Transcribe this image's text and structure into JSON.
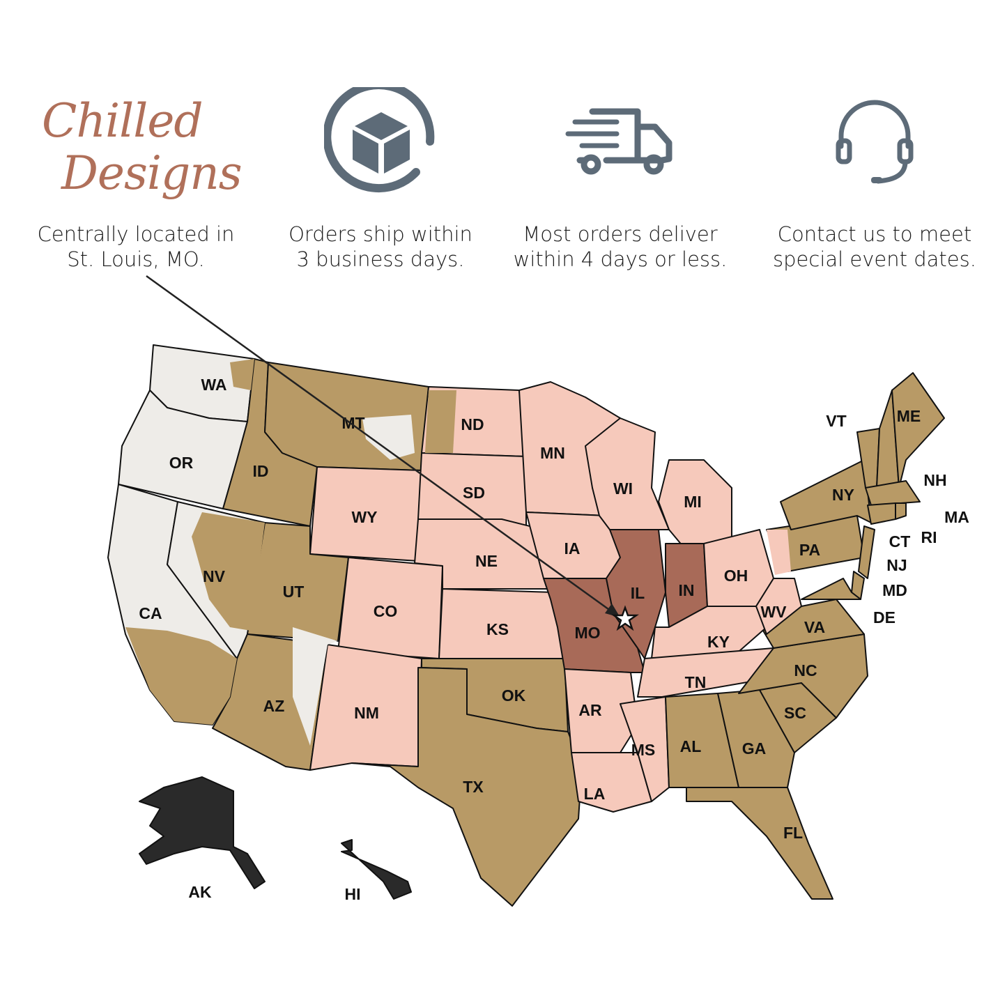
{
  "logo": {
    "line1": "Chilled",
    "line2": "Designs",
    "mark": "®"
  },
  "features": [
    {
      "icon": "location-logo",
      "line1": "Centrally located in",
      "line2": "St. Louis, MO."
    },
    {
      "icon": "package-icon",
      "line1": "Orders ship within",
      "line2": "3 business days."
    },
    {
      "icon": "truck-icon",
      "line1": "Most orders deliver",
      "line2": "within 4 days or less."
    },
    {
      "icon": "headset-icon",
      "line1": "Contact us to meet",
      "line2": "special event dates."
    }
  ],
  "colors": {
    "icon": "#5d6b78",
    "logo": "#b0705a",
    "zone_origin": "#a86a58",
    "zone_near": "#f6c9bb",
    "zone_mid": "#b89a66",
    "zone_far": "#eeece8",
    "zone_offshore": "#2a2a2a"
  },
  "map": {
    "origin": "St. Louis, MO",
    "states": [
      {
        "abbr": "WA",
        "zone": "far"
      },
      {
        "abbr": "OR",
        "zone": "far"
      },
      {
        "abbr": "CA",
        "zone": "far"
      },
      {
        "abbr": "NV",
        "zone": "far"
      },
      {
        "abbr": "ID",
        "zone": "mid"
      },
      {
        "abbr": "MT",
        "zone": "mid"
      },
      {
        "abbr": "WY",
        "zone": "near"
      },
      {
        "abbr": "UT",
        "zone": "mid"
      },
      {
        "abbr": "AZ",
        "zone": "mid"
      },
      {
        "abbr": "CO",
        "zone": "near"
      },
      {
        "abbr": "NM",
        "zone": "near"
      },
      {
        "abbr": "ND",
        "zone": "near"
      },
      {
        "abbr": "SD",
        "zone": "near"
      },
      {
        "abbr": "NE",
        "zone": "near"
      },
      {
        "abbr": "KS",
        "zone": "near"
      },
      {
        "abbr": "OK",
        "zone": "mid"
      },
      {
        "abbr": "TX",
        "zone": "mid"
      },
      {
        "abbr": "MN",
        "zone": "near"
      },
      {
        "abbr": "IA",
        "zone": "near"
      },
      {
        "abbr": "MO",
        "zone": "origin"
      },
      {
        "abbr": "AR",
        "zone": "near"
      },
      {
        "abbr": "LA",
        "zone": "near"
      },
      {
        "abbr": "WI",
        "zone": "near"
      },
      {
        "abbr": "IL",
        "zone": "origin"
      },
      {
        "abbr": "MI",
        "zone": "near"
      },
      {
        "abbr": "IN",
        "zone": "origin"
      },
      {
        "abbr": "OH",
        "zone": "near"
      },
      {
        "abbr": "KY",
        "zone": "near"
      },
      {
        "abbr": "TN",
        "zone": "near"
      },
      {
        "abbr": "MS",
        "zone": "near"
      },
      {
        "abbr": "AL",
        "zone": "mid"
      },
      {
        "abbr": "GA",
        "zone": "mid"
      },
      {
        "abbr": "FL",
        "zone": "mid"
      },
      {
        "abbr": "SC",
        "zone": "mid"
      },
      {
        "abbr": "NC",
        "zone": "mid"
      },
      {
        "abbr": "VA",
        "zone": "mid"
      },
      {
        "abbr": "WV",
        "zone": "near"
      },
      {
        "abbr": "PA",
        "zone": "mid"
      },
      {
        "abbr": "NY",
        "zone": "mid"
      },
      {
        "abbr": "VT",
        "zone": "mid"
      },
      {
        "abbr": "NH",
        "zone": "mid"
      },
      {
        "abbr": "ME",
        "zone": "mid"
      },
      {
        "abbr": "MA",
        "zone": "mid"
      },
      {
        "abbr": "RI",
        "zone": "mid"
      },
      {
        "abbr": "CT",
        "zone": "mid"
      },
      {
        "abbr": "NJ",
        "zone": "mid"
      },
      {
        "abbr": "DE",
        "zone": "mid"
      },
      {
        "abbr": "MD",
        "zone": "mid"
      },
      {
        "abbr": "AK",
        "zone": "offshore"
      },
      {
        "abbr": "HI",
        "zone": "offshore"
      }
    ]
  }
}
